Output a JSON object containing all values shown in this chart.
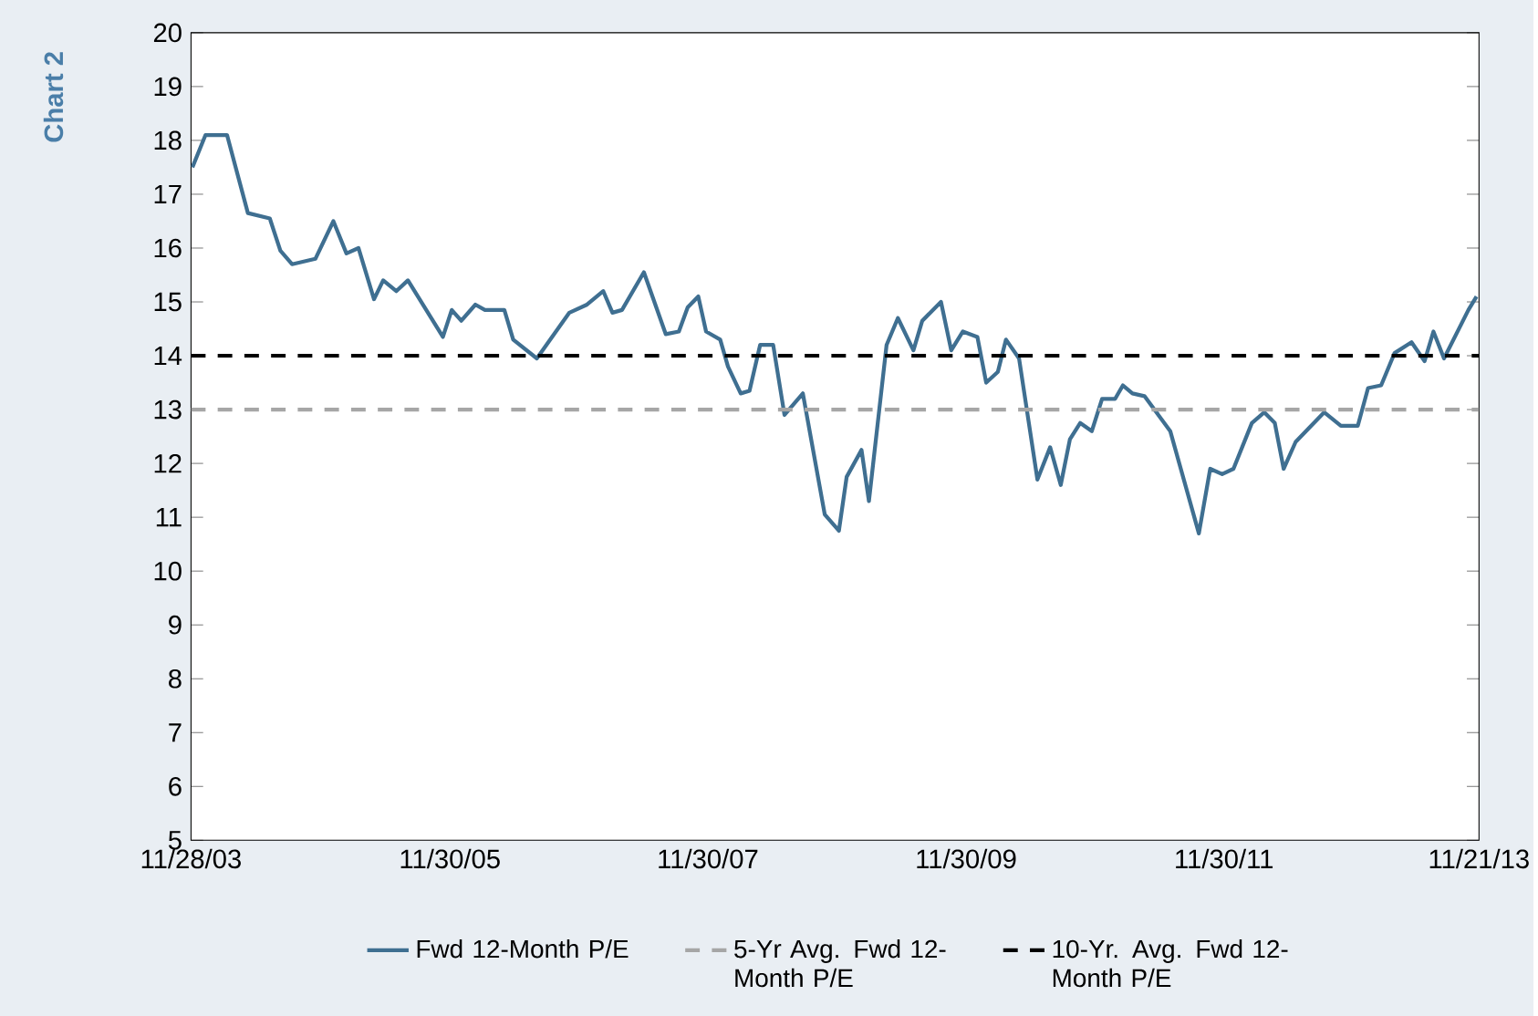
{
  "chart_data": {
    "type": "line",
    "annotations": [
      "Chart 2"
    ],
    "x": [
      "2003-12-02",
      "2004-01-08",
      "2004-03-09",
      "2004-05-07",
      "2004-07-08",
      "2004-08-07",
      "2004-09-09",
      "2004-11-14",
      "2005-01-04",
      "2005-02-10",
      "2005-03-16",
      "2005-04-29",
      "2005-05-25",
      "2005-07-01",
      "2005-08-03",
      "2005-11-10",
      "2005-12-05",
      "2006-01-01",
      "2006-02-10",
      "2006-03-09",
      "2006-05-03",
      "2006-05-28",
      "2006-08-03",
      "2006-11-03",
      "2006-12-23",
      "2007-02-07",
      "2007-03-05",
      "2007-04-01",
      "2007-06-02",
      "2007-08-03",
      "2007-09-09",
      "2007-10-04",
      "2007-11-03",
      "2007-11-25",
      "2008-01-04",
      "2008-01-26",
      "2008-03-02",
      "2008-03-27",
      "2008-04-26",
      "2008-06-02",
      "2008-07-04",
      "2008-08-25",
      "2008-10-26",
      "2008-12-05",
      "2008-12-27",
      "2009-02-07",
      "2009-02-28",
      "2009-04-19",
      "2009-05-21",
      "2009-07-04",
      "2009-07-29",
      "2009-09-20",
      "2009-10-19",
      "2009-11-21",
      "2010-01-01",
      "2010-01-26",
      "2010-02-28",
      "2010-03-23",
      "2010-04-29",
      "2010-06-20",
      "2010-07-26",
      "2010-08-25",
      "2010-09-20",
      "2010-10-19",
      "2010-11-21",
      "2010-12-20",
      "2011-01-26",
      "2011-02-17",
      "2011-03-16",
      "2011-04-19",
      "2011-07-01",
      "2011-09-20",
      "2011-10-22",
      "2011-11-25",
      "2011-12-27",
      "2012-02-17",
      "2012-03-23",
      "2012-04-22",
      "2012-05-17",
      "2012-06-20",
      "2012-09-09",
      "2012-10-26",
      "2012-12-13",
      "2013-01-11",
      "2013-02-17",
      "2013-03-27",
      "2013-05-14",
      "2013-06-20",
      "2013-07-15",
      "2013-08-14",
      "2013-10-22",
      "2013-11-14"
    ],
    "series": [
      {
        "name": "Fwd 12-Month P/E",
        "color": "#3f6f91",
        "values": [
          17.5,
          18.1,
          18.1,
          16.65,
          16.55,
          15.95,
          15.7,
          15.8,
          16.5,
          15.9,
          16.0,
          15.05,
          15.4,
          15.2,
          15.4,
          14.35,
          14.85,
          14.65,
          14.95,
          14.85,
          14.85,
          14.3,
          13.95,
          14.8,
          14.95,
          15.2,
          14.8,
          14.85,
          15.55,
          14.4,
          14.45,
          14.9,
          15.1,
          14.45,
          14.3,
          13.8,
          13.3,
          13.35,
          14.2,
          14.2,
          12.9,
          13.3,
          11.05,
          10.75,
          11.75,
          12.25,
          11.3,
          14.2,
          14.7,
          14.1,
          14.65,
          15.0,
          14.1,
          14.45,
          14.35,
          13.5,
          13.7,
          14.3,
          13.95,
          11.7,
          12.3,
          11.6,
          12.45,
          12.75,
          12.6,
          13.2,
          13.2,
          13.45,
          13.3,
          13.25,
          12.6,
          10.7,
          11.9,
          11.8,
          11.9,
          12.75,
          12.95,
          12.75,
          11.9,
          12.4,
          12.95,
          12.7,
          12.7,
          13.4,
          13.45,
          14.05,
          14.25,
          13.9,
          14.45,
          13.95,
          14.85,
          15.1
        ]
      }
    ],
    "ref_lines": [
      {
        "axis": "y",
        "value": 13,
        "label": "5-Yr Avg. Fwd 12-Month P/E",
        "color": "#a6a6a6",
        "line_style": "dashed"
      },
      {
        "axis": "y",
        "value": 14,
        "label": "10-Yr. Avg. Fwd 12-Month P/E",
        "color": "#000000",
        "line_style": "dashed"
      }
    ],
    "xlim": [
      "2003-11-28",
      "2013-11-21"
    ],
    "xticks": [
      {
        "value": "2003-11-28",
        "label": "11/28/03"
      },
      {
        "value": "2005-11-30",
        "label": "11/30/05"
      },
      {
        "value": "2007-11-30",
        "label": "11/30/07"
      },
      {
        "value": "2009-11-30",
        "label": "11/30/09"
      },
      {
        "value": "2011-11-30",
        "label": "11/30/11"
      },
      {
        "value": "2013-11-21",
        "label": "11/21/13"
      }
    ],
    "ylim": [
      5,
      20
    ],
    "yticks": [
      5,
      6,
      7,
      8,
      9,
      10,
      11,
      12,
      13,
      14,
      15,
      16,
      17,
      18,
      19,
      20
    ],
    "grid": false,
    "legend": "bottom",
    "marker": "none",
    "line_style": "solid"
  }
}
